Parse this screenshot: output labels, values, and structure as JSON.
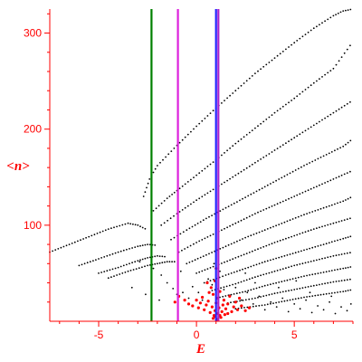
{
  "chart_data": {
    "type": "scatter",
    "title": "",
    "xlabel": "E",
    "ylabel": "<n>",
    "xlim": [
      -7.5,
      8
    ],
    "ylim": [
      0,
      325
    ],
    "xticks": [
      -5,
      0,
      5
    ],
    "yticks": [
      100,
      200,
      300
    ],
    "grid": false,
    "colors": {
      "axis": "#ff0000",
      "points": "#000000",
      "highlight_points": "#ff0000",
      "line_green": "#008000",
      "line_magenta": "#dd22dd",
      "line_blue": "#2222ff",
      "line_violet": "#aa22cc"
    },
    "vertical_lines": [
      {
        "x": -2.3,
        "color": "#008000"
      },
      {
        "x": -0.95,
        "color": "#dd22dd"
      },
      {
        "x": 1.0,
        "color": "#2222ff"
      },
      {
        "x": 1.12,
        "color": "#aa22cc"
      }
    ],
    "bands": [
      {
        "x": [
          -7.5,
          -6.5,
          -5.5,
          -4.5,
          -3.5,
          -3.0,
          -2.5
        ],
        "y": [
          72,
          80,
          88,
          96,
          102,
          100,
          95
        ]
      },
      {
        "x": [
          -6.0,
          -5.0,
          -4.0,
          -3.0,
          -2.5,
          -2.0
        ],
        "y": [
          58,
          65,
          72,
          78,
          80,
          79
        ]
      },
      {
        "x": [
          -5.0,
          -4.0,
          -3.0,
          -2.5,
          -2.0,
          -1.5
        ],
        "y": [
          50,
          56,
          63,
          66,
          68,
          67
        ]
      },
      {
        "x": [
          -4.5,
          -3.5,
          -2.5,
          -2.0,
          -1.5,
          -1.0
        ],
        "y": [
          45,
          52,
          58,
          60,
          62,
          62
        ]
      },
      {
        "x": [
          -2.7,
          -2.4,
          -2.0,
          -1.0,
          0.0,
          1.0,
          2.0,
          3.0,
          4.0,
          5.0,
          6.0,
          7.0,
          7.5,
          8.0
        ],
        "y": [
          130,
          148,
          162,
          183,
          203,
          222,
          240,
          258,
          274,
          290,
          305,
          318,
          323,
          325
        ]
      },
      {
        "x": [
          -2.2,
          -1.5,
          -1.0,
          0.0,
          1.0,
          2.0,
          3.0,
          4.0,
          5.0,
          6.0,
          7.0,
          8.0
        ],
        "y": [
          115,
          128,
          136,
          152,
          168,
          185,
          201,
          217,
          232,
          248,
          263,
          291
        ]
      },
      {
        "x": [
          -1.8,
          -1.0,
          0.0,
          1.0,
          2.0,
          3.0,
          4.0,
          5.0,
          6.0,
          7.0,
          8.0
        ],
        "y": [
          100,
          112,
          126,
          139,
          152,
          165,
          178,
          191,
          204,
          217,
          230
        ]
      },
      {
        "x": [
          -1.3,
          -0.5,
          0.5,
          1.5,
          2.5,
          3.5,
          4.5,
          5.5,
          6.5,
          7.5,
          8.0
        ],
        "y": [
          85,
          95,
          107,
          118,
          129,
          140,
          151,
          162,
          172,
          182,
          190
        ]
      },
      {
        "x": [
          -0.9,
          0.0,
          1.0,
          2.0,
          3.0,
          4.0,
          5.0,
          6.0,
          7.0,
          8.0
        ],
        "y": [
          72,
          82,
          92,
          102,
          112,
          121,
          130,
          139,
          148,
          157
        ]
      },
      {
        "x": [
          -0.5,
          0.5,
          1.5,
          2.5,
          3.5,
          4.5,
          5.5,
          6.5,
          7.5,
          8.0
        ],
        "y": [
          60,
          69,
          78,
          87,
          95,
          103,
          111,
          118,
          125,
          130
        ]
      },
      {
        "x": [
          0.0,
          1.0,
          2.0,
          3.0,
          4.0,
          5.0,
          6.0,
          7.0,
          8.0
        ],
        "y": [
          50,
          58,
          66,
          74,
          82,
          89,
          96,
          102,
          108
        ]
      },
      {
        "x": [
          0.4,
          1.5,
          2.5,
          3.5,
          4.5,
          5.5,
          6.5,
          7.5,
          8.0
        ],
        "y": [
          40,
          48,
          55,
          62,
          68,
          74,
          80,
          86,
          89
        ]
      },
      {
        "x": [
          0.8,
          2.0,
          3.0,
          4.0,
          5.0,
          6.0,
          7.0,
          8.0
        ],
        "y": [
          32,
          39,
          46,
          52,
          58,
          63,
          68,
          72
        ]
      },
      {
        "x": [
          1.2,
          2.5,
          3.5,
          4.5,
          5.5,
          6.5,
          7.5,
          8.0
        ],
        "y": [
          25,
          31,
          37,
          42,
          47,
          51,
          55,
          57
        ]
      },
      {
        "x": [
          1.6,
          3.0,
          4.0,
          5.0,
          6.0,
          7.0,
          8.0
        ],
        "y": [
          19,
          24,
          29,
          33,
          37,
          41,
          44
        ]
      },
      {
        "x": [
          2.0,
          3.5,
          4.5,
          5.5,
          6.5,
          7.5,
          8.0
        ],
        "y": [
          13,
          17,
          21,
          25,
          28,
          31,
          33
        ]
      }
    ],
    "scattered_points": [
      [
        -2.9,
        62
      ],
      [
        -2.2,
        55
      ],
      [
        -1.8,
        48
      ],
      [
        -1.5,
        40
      ],
      [
        -1.2,
        34
      ],
      [
        -1.0,
        28
      ],
      [
        -0.7,
        30
      ],
      [
        -0.4,
        24
      ],
      [
        -0.2,
        36
      ],
      [
        0.1,
        30
      ],
      [
        0.3,
        22
      ],
      [
        0.6,
        44
      ],
      [
        0.8,
        38
      ],
      [
        1.4,
        33
      ],
      [
        1.7,
        27
      ],
      [
        2.0,
        35
      ],
      [
        2.3,
        22
      ],
      [
        2.6,
        30
      ],
      [
        2.9,
        18
      ],
      [
        3.2,
        26
      ],
      [
        3.5,
        12
      ],
      [
        3.8,
        20
      ],
      [
        4.1,
        15
      ],
      [
        4.4,
        24
      ],
      [
        4.7,
        10
      ],
      [
        5.0,
        18
      ],
      [
        5.3,
        13
      ],
      [
        5.6,
        22
      ],
      [
        5.9,
        9
      ],
      [
        6.2,
        16
      ],
      [
        6.5,
        12
      ],
      [
        6.8,
        20
      ],
      [
        7.1,
        8
      ],
      [
        7.4,
        15
      ],
      [
        7.7,
        11
      ],
      [
        7.9,
        18
      ],
      [
        -3.3,
        35
      ],
      [
        -2.6,
        28
      ],
      [
        -1.9,
        22
      ],
      [
        0.9,
        60
      ],
      [
        3.0,
        40
      ],
      [
        4.2,
        35
      ],
      [
        5.8,
        30
      ],
      [
        6.9,
        26
      ],
      [
        2.5,
        50
      ],
      [
        5.1,
        42
      ],
      [
        1.2,
        52
      ],
      [
        -0.8,
        52
      ]
    ],
    "red_cluster": {
      "center_x": 0.9,
      "center_y": 12,
      "points": [
        [
          -0.4,
          18
        ],
        [
          -0.2,
          16
        ],
        [
          0.0,
          22
        ],
        [
          0.1,
          14
        ],
        [
          0.2,
          19
        ],
        [
          0.3,
          25
        ],
        [
          0.4,
          12
        ],
        [
          0.5,
          17
        ],
        [
          0.6,
          21
        ],
        [
          0.7,
          9
        ],
        [
          0.8,
          15
        ],
        [
          0.85,
          28
        ],
        [
          0.9,
          6
        ],
        [
          0.95,
          11
        ],
        [
          1.0,
          19
        ],
        [
          1.05,
          24
        ],
        [
          1.1,
          8
        ],
        [
          1.15,
          14
        ],
        [
          1.2,
          31
        ],
        [
          1.25,
          4
        ],
        [
          1.3,
          10
        ],
        [
          1.35,
          17
        ],
        [
          1.4,
          22
        ],
        [
          1.45,
          7
        ],
        [
          1.5,
          13
        ],
        [
          1.6,
          18
        ],
        [
          1.7,
          26
        ],
        [
          1.8,
          10
        ],
        [
          1.9,
          15
        ],
        [
          2.0,
          20
        ],
        [
          2.1,
          12
        ],
        [
          2.3,
          16
        ],
        [
          2.5,
          11
        ],
        [
          2.7,
          14
        ],
        [
          0.65,
          30
        ],
        [
          0.75,
          35
        ],
        [
          0.95,
          42
        ],
        [
          1.0,
          55
        ],
        [
          0.55,
          40
        ],
        [
          -0.6,
          22
        ],
        [
          -0.9,
          26
        ],
        [
          -1.1,
          20
        ],
        [
          1.6,
          8
        ],
        [
          0.85,
          3
        ],
        [
          1.05,
          2
        ],
        [
          0.95,
          5
        ],
        [
          1.2,
          6
        ],
        [
          2.2,
          24
        ]
      ]
    }
  }
}
